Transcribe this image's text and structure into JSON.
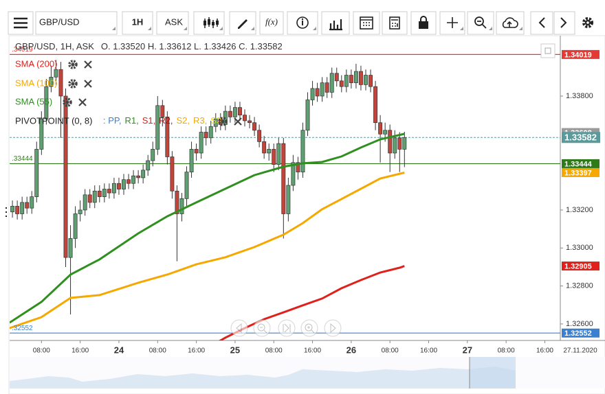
{
  "toolbar": {
    "symbol": "GBP/USD",
    "timeframe": "1H",
    "price_type": "ASK",
    "function_button": "f(x)"
  },
  "chart_data": {
    "type": "candlestick",
    "header": {
      "symbol_line": "GBP/USD, 1H, ASK",
      "ohlc_text": "O. 1.33520 H. 1.33612 L. 1.33426 C. 1.33582"
    },
    "indicators": [
      {
        "name": "SMA (200)",
        "color": "#e0201b"
      },
      {
        "name": "SMA (100)",
        "color": "#f5a800"
      },
      {
        "name": "SMA (55)",
        "color": "#2f8f1f"
      },
      {
        "name": "PIVOTPOINT (0, 8)",
        "color": "#222222"
      }
    ],
    "pivot_parts": [
      {
        "text": ": PP,",
        "color": "#3a7fd0"
      },
      {
        "text": "R1,",
        "color": "#2f8f1f"
      },
      {
        "text": "S1,",
        "color": "#e0201b"
      },
      {
        "text": "R2,",
        "color": "#b01010"
      },
      {
        "text": "S2,",
        "color": "#f5a800"
      },
      {
        "text": "R3,",
        "color": "#f5a800"
      },
      {
        "text": "S3",
        "color": "#f2d000"
      }
    ],
    "xlim": [
      1.42,
      115.2
    ],
    "ylim": [
      1.32513,
      1.34118
    ],
    "xticks": [
      {
        "value": 8,
        "label": "08:00"
      },
      {
        "value": 16,
        "label": "16:00"
      },
      {
        "value": 24,
        "label": "24"
      },
      {
        "value": 32,
        "label": "08:00"
      },
      {
        "value": 40,
        "label": "16:00"
      },
      {
        "value": 48,
        "label": "25"
      },
      {
        "value": 56,
        "label": "08:00"
      },
      {
        "value": 64,
        "label": "16:00"
      },
      {
        "value": 72,
        "label": "26"
      },
      {
        "value": 80,
        "label": "08:00"
      },
      {
        "value": 88,
        "label": "16:00"
      },
      {
        "value": 96,
        "label": "27"
      },
      {
        "value": 104,
        "label": "08:00"
      },
      {
        "value": 112,
        "label": "16:00"
      }
    ],
    "date_label": "27.11.2020",
    "yticks": [
      {
        "value": 1.338,
        "label": "1.33800"
      },
      {
        "value": 1.332,
        "label": "1.33200"
      },
      {
        "value": 1.33,
        "label": "1.33000"
      },
      {
        "value": 1.328,
        "label": "1.32800"
      },
      {
        "value": 1.326,
        "label": "1.32600"
      }
    ],
    "candles": {
      "up_color": "#5f9f72",
      "down_color": "#c2453b",
      "x": [
        2,
        3,
        4,
        5,
        6,
        7,
        8,
        9,
        10,
        11,
        12,
        13,
        14,
        15,
        16,
        17,
        18,
        19,
        20,
        21,
        22,
        23,
        24,
        25,
        26,
        27,
        28,
        29,
        30,
        31,
        32,
        33,
        34,
        35,
        36,
        37,
        38,
        39,
        40,
        41,
        42,
        43,
        44,
        45,
        46,
        47,
        48,
        49,
        50,
        51,
        52,
        53,
        54,
        55,
        56,
        57,
        58,
        59,
        60,
        61,
        62,
        63,
        64,
        65,
        66,
        67,
        68,
        69,
        70,
        71,
        72,
        73,
        74,
        75,
        76,
        77,
        78,
        79,
        80,
        81,
        82,
        83
      ],
      "open": [
        1.3319,
        1.3322,
        1.3318,
        1.3324,
        1.3321,
        1.3327,
        1.3352,
        1.3368,
        1.3385,
        1.339,
        1.3394,
        1.338,
        1.3295,
        1.3305,
        1.3318,
        1.332,
        1.3328,
        1.3324,
        1.333,
        1.3327,
        1.3331,
        1.3329,
        1.3334,
        1.3331,
        1.3336,
        1.3334,
        1.3338,
        1.3337,
        1.3341,
        1.3346,
        1.3352,
        1.3375,
        1.3369,
        1.3348,
        1.333,
        1.3318,
        1.3326,
        1.334,
        1.3352,
        1.335,
        1.3361,
        1.3358,
        1.3364,
        1.3368,
        1.3365,
        1.3372,
        1.3369,
        1.3374,
        1.337,
        1.3367,
        1.3366,
        1.3362,
        1.3356,
        1.335,
        1.3352,
        1.3344,
        1.3355,
        1.3318,
        1.3333,
        1.3345,
        1.334,
        1.3362,
        1.3378,
        1.3384,
        1.338,
        1.3387,
        1.3382,
        1.3392,
        1.3388,
        1.3385,
        1.3391,
        1.3387,
        1.3393,
        1.3386,
        1.3391,
        1.3385,
        1.3366,
        1.336,
        1.3362,
        1.335,
        1.3358,
        1.3352
      ],
      "high": [
        1.3325,
        1.3325,
        1.3327,
        1.3327,
        1.333,
        1.3356,
        1.3372,
        1.3389,
        1.3396,
        1.3399,
        1.3398,
        1.3384,
        1.3312,
        1.3322,
        1.3325,
        1.3331,
        1.3331,
        1.3333,
        1.3333,
        1.3334,
        1.3334,
        1.3337,
        1.3337,
        1.3339,
        1.3339,
        1.3341,
        1.3341,
        1.3344,
        1.3349,
        1.3356,
        1.338,
        1.3378,
        1.3372,
        1.3351,
        1.3333,
        1.3329,
        1.3343,
        1.3356,
        1.3355,
        1.3364,
        1.3364,
        1.3367,
        1.3371,
        1.3371,
        1.3375,
        1.3375,
        1.3377,
        1.3377,
        1.3373,
        1.337,
        1.3369,
        1.3365,
        1.3359,
        1.3355,
        1.3355,
        1.3358,
        1.3358,
        1.3337,
        1.3349,
        1.3348,
        1.3366,
        1.3382,
        1.3388,
        1.3387,
        1.339,
        1.339,
        1.3395,
        1.3395,
        1.3391,
        1.3394,
        1.3394,
        1.3397,
        1.3396,
        1.3394,
        1.3394,
        1.3388,
        1.337,
        1.3366,
        1.3365,
        1.3362,
        1.3361,
        1.33612
      ],
      "low": [
        1.3316,
        1.3315,
        1.3315,
        1.3318,
        1.3318,
        1.3324,
        1.3349,
        1.3365,
        1.3382,
        1.3386,
        1.3358,
        1.329,
        1.3265,
        1.33,
        1.3314,
        1.3317,
        1.3321,
        1.3321,
        1.3324,
        1.3324,
        1.3326,
        1.3326,
        1.3328,
        1.3328,
        1.3331,
        1.3331,
        1.3334,
        1.3334,
        1.3338,
        1.3343,
        1.3349,
        1.3364,
        1.3344,
        1.3326,
        1.3293,
        1.3314,
        1.3322,
        1.3337,
        1.3346,
        1.3347,
        1.3354,
        1.3355,
        1.3361,
        1.3362,
        1.3362,
        1.3366,
        1.3366,
        1.3367,
        1.3364,
        1.3363,
        1.3359,
        1.3353,
        1.3347,
        1.3346,
        1.334,
        1.3341,
        1.3305,
        1.3314,
        1.333,
        1.3336,
        1.3337,
        1.3359,
        1.3375,
        1.3377,
        1.3377,
        1.3379,
        1.3379,
        1.3385,
        1.3382,
        1.3382,
        1.3384,
        1.3384,
        1.3383,
        1.3383,
        1.3382,
        1.3362,
        1.3345,
        1.3356,
        1.334,
        1.3347,
        1.334,
        1.33426
      ],
      "close": [
        1.3322,
        1.3318,
        1.3324,
        1.3321,
        1.3327,
        1.3352,
        1.3368,
        1.3385,
        1.339,
        1.3394,
        1.338,
        1.3295,
        1.3305,
        1.3318,
        1.332,
        1.3328,
        1.3324,
        1.333,
        1.3327,
        1.3331,
        1.3329,
        1.3334,
        1.3331,
        1.3336,
        1.3334,
        1.3338,
        1.3337,
        1.3341,
        1.3346,
        1.3352,
        1.3375,
        1.3369,
        1.3348,
        1.333,
        1.3318,
        1.3326,
        1.334,
        1.3352,
        1.335,
        1.3361,
        1.3358,
        1.3364,
        1.3368,
        1.3365,
        1.3372,
        1.3369,
        1.3374,
        1.337,
        1.3367,
        1.3366,
        1.3362,
        1.3356,
        1.335,
        1.3352,
        1.3344,
        1.3355,
        1.3318,
        1.3333,
        1.3345,
        1.334,
        1.3362,
        1.3378,
        1.3384,
        1.338,
        1.3387,
        1.3382,
        1.3392,
        1.3388,
        1.3385,
        1.3391,
        1.3387,
        1.3393,
        1.3386,
        1.3391,
        1.3385,
        1.3366,
        1.336,
        1.3362,
        1.335,
        1.3358,
        1.3352,
        1.33582
      ]
    },
    "series": [
      {
        "name": "SMA (55)",
        "color": "#2f8f1f",
        "x": [
          1.42,
          8,
          14,
          20,
          28,
          34,
          40,
          46,
          52,
          58,
          62,
          66,
          70,
          74,
          78,
          83
        ],
        "values": [
          1.32607,
          1.32716,
          1.3286,
          1.3294,
          1.33077,
          1.33167,
          1.3324,
          1.33312,
          1.33384,
          1.33428,
          1.33446,
          1.33453,
          1.33482,
          1.33529,
          1.33572,
          1.33601
        ]
      },
      {
        "name": "SMA (100)",
        "color": "#f5a800",
        "x": [
          1.42,
          8,
          14,
          20,
          28,
          34,
          40,
          46,
          52,
          58,
          62,
          66,
          70,
          74,
          78,
          83
        ],
        "values": [
          1.32578,
          1.32636,
          1.32737,
          1.32752,
          1.32817,
          1.3286,
          1.32914,
          1.32951,
          1.33005,
          1.3307,
          1.33131,
          1.33204,
          1.33258,
          1.33312,
          1.33366,
          1.33397
        ]
      },
      {
        "name": "SMA (200)",
        "color": "#e0201b",
        "x": [
          44,
          46,
          50,
          54,
          58,
          62,
          66,
          70,
          74,
          78,
          82,
          83
        ],
        "values": [
          1.32498,
          1.32528,
          1.32578,
          1.32625,
          1.32661,
          1.32698,
          1.32734,
          1.32788,
          1.32831,
          1.32871,
          1.32896,
          1.32905
        ]
      }
    ],
    "levels": [
      {
        "value": 1.34019,
        "color": "#e33b35",
        "left_label": ".34019"
      },
      {
        "value": 1.33444,
        "color": "#2f7a1a",
        "left_label": ".33444"
      },
      {
        "value": 1.32552,
        "color": "#3a7fd0",
        "left_label": ".32552"
      }
    ],
    "price_labels": [
      {
        "value": 1.33608,
        "color": "#9a9a9a"
      },
      {
        "value": 1.33397,
        "color": "#f5a800"
      },
      {
        "value": 1.32905,
        "color": "#e0201b"
      }
    ],
    "last_price": {
      "value": 1.33582,
      "color": "#5a9a9a"
    }
  }
}
